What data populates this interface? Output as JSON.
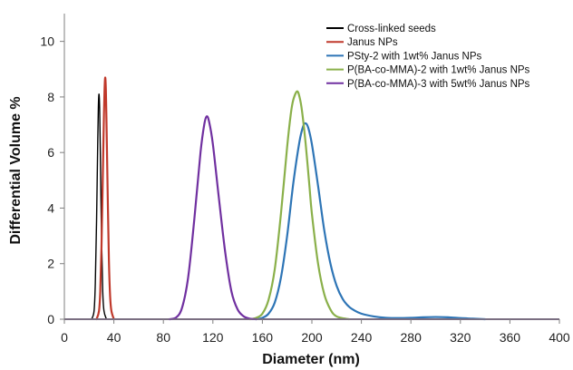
{
  "chart_data": {
    "type": "line",
    "xlabel": "Diameter (nm)",
    "ylabel": "Differential Volume %",
    "xlim": [
      0,
      400
    ],
    "ylim": [
      0,
      11
    ],
    "xticks": [
      "0",
      "40",
      "80",
      "120",
      "160",
      "200",
      "240",
      "280",
      "320",
      "360",
      "400"
    ],
    "yticks": [
      "0",
      "2",
      "4",
      "6",
      "8",
      "10"
    ],
    "grid": false,
    "legend_position": "top-right",
    "series": [
      {
        "name": "Cross-linked seeds",
        "color": "#000000",
        "x": [
          22,
          24,
          25,
          26,
          27,
          27.5,
          28,
          28.5,
          29,
          30,
          31,
          32,
          34
        ],
        "y": [
          0,
          0.3,
          1.3,
          3.5,
          6.5,
          7.7,
          8.1,
          7.6,
          6.2,
          3.0,
          1.0,
          0.3,
          0
        ]
      },
      {
        "name": "Janus NPs",
        "color": "#c0392b",
        "x": [
          26,
          28,
          29,
          30,
          31,
          32,
          32.5,
          33,
          33.5,
          34,
          35,
          36,
          37,
          38,
          40
        ],
        "y": [
          0,
          0.3,
          1.0,
          2.6,
          5.0,
          7.4,
          8.3,
          8.7,
          8.3,
          7.2,
          4.5,
          2.1,
          0.8,
          0.3,
          0
        ]
      },
      {
        "name": "PSty-2 with 1wt% Janus NPs",
        "color": "#2e75b6",
        "x": [
          155,
          160,
          165,
          170,
          175,
          180,
          185,
          190,
          193,
          195,
          197,
          200,
          205,
          210,
          215,
          220,
          225,
          230,
          235,
          240,
          250,
          260,
          270,
          280,
          290,
          300,
          310,
          320,
          330,
          340
        ],
        "y": [
          0,
          0.05,
          0.2,
          0.6,
          1.5,
          3.0,
          4.9,
          6.4,
          6.95,
          7.05,
          6.9,
          6.3,
          4.8,
          3.2,
          2.0,
          1.2,
          0.72,
          0.45,
          0.3,
          0.2,
          0.1,
          0.05,
          0.04,
          0.05,
          0.07,
          0.08,
          0.07,
          0.04,
          0.02,
          0
        ]
      },
      {
        "name": "P(BA-co-MMA)-2 with 1wt% Janus NPs",
        "color": "#8ab04a",
        "x": [
          150,
          155,
          160,
          165,
          170,
          175,
          180,
          183,
          185,
          188,
          190,
          192,
          195,
          198,
          200,
          205,
          210,
          215,
          220,
          230
        ],
        "y": [
          0,
          0.05,
          0.2,
          0.7,
          1.8,
          3.8,
          6.2,
          7.4,
          7.9,
          8.2,
          8.0,
          7.5,
          6.3,
          4.8,
          3.8,
          2.0,
          0.9,
          0.35,
          0.1,
          0
        ]
      },
      {
        "name": "P(BA-co-MMA)-3 with 5wt% Janus NPs",
        "color": "#7030a0",
        "x": [
          85,
          90,
          95,
          100,
          105,
          110,
          113,
          115,
          117,
          120,
          125,
          130,
          135,
          140,
          145,
          150,
          155
        ],
        "y": [
          0,
          0.05,
          0.4,
          1.5,
          3.6,
          6.0,
          7.0,
          7.3,
          7.1,
          6.3,
          4.3,
          2.4,
          1.0,
          0.35,
          0.1,
          0.02,
          0
        ]
      }
    ]
  }
}
